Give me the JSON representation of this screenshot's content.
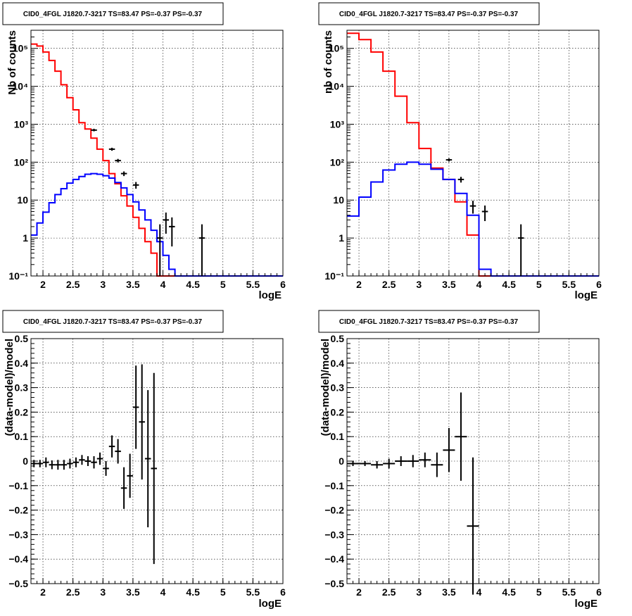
{
  "chart_data": [
    {
      "type": "line",
      "title": "CID0_4FGL J1820.7-3217 TS=83.47 PS=-0.37 PS=-0.37",
      "xlabel": "logE",
      "ylabel": "Nb of counts",
      "xlim": [
        1.8,
        6.0
      ],
      "ylim": [
        0.1,
        300000
      ],
      "yscale": "log",
      "grid": true,
      "xticks": [
        "2",
        "2.5",
        "3",
        "3.5",
        "4",
        "4.5",
        "5",
        "5.5",
        "6"
      ],
      "yticks": [
        "10⁻¹",
        "1",
        "10",
        "10²",
        "10³",
        "10⁴",
        "10⁵"
      ],
      "bin_edges": [
        1.8,
        1.9,
        2.0,
        2.1,
        2.2,
        2.3,
        2.4,
        2.5,
        2.6,
        2.7,
        2.8,
        2.9,
        3.0,
        3.1,
        3.2,
        3.3,
        3.4,
        3.5,
        3.6,
        3.7,
        3.8,
        3.9,
        4.0,
        4.1,
        4.2,
        4.3,
        4.4,
        4.5,
        4.6,
        4.7,
        4.8,
        4.9,
        5.0,
        5.1,
        5.2,
        5.3,
        5.4,
        5.5,
        5.6,
        5.7,
        5.8,
        5.9,
        6.0
      ],
      "series": [
        {
          "color": "#ff0000",
          "style": "step",
          "values": [
            130000,
            115000,
            80000,
            48000,
            25000,
            11000,
            5000,
            2400,
            1100,
            750,
            430,
            220,
            110,
            50,
            27,
            13,
            7,
            3.5,
            1.8,
            0.8,
            0.4,
            0.1,
            0.1,
            0.1,
            0.1,
            0.1,
            0.1,
            0.1,
            0.1,
            0.1,
            0.1,
            0.1,
            0.1,
            0.1,
            0.1,
            0.1,
            0.1,
            0.1,
            0.1,
            0.1,
            0.1,
            0.1
          ]
        },
        {
          "color": "#0000ff",
          "style": "step",
          "values": [
            1.2,
            2.5,
            4.8,
            8.5,
            14,
            20,
            28,
            35,
            42,
            48,
            50,
            48,
            44,
            38,
            29,
            21,
            14,
            9,
            5.5,
            3,
            1.6,
            0.8,
            0.35,
            0.15,
            0.1,
            0.1,
            0.1,
            0.1,
            0.1,
            0.1,
            0.1,
            0.1,
            0.1,
            0.1,
            0.1,
            0.1,
            0.1,
            0.1,
            0.1,
            0.1,
            0.1,
            0.1
          ]
        },
        {
          "color": "#000000",
          "style": "errorbar",
          "points": [
            {
              "x": 2.85,
              "y": 700,
              "lo": 650,
              "hi": 760
            },
            {
              "x": 3.15,
              "y": 220,
              "lo": 200,
              "hi": 240
            },
            {
              "x": 3.25,
              "y": 110,
              "lo": 98,
              "hi": 122
            },
            {
              "x": 3.35,
              "y": 50,
              "lo": 43,
              "hi": 57
            },
            {
              "x": 3.55,
              "y": 25,
              "lo": 20,
              "hi": 30
            },
            {
              "x": 3.95,
              "y": 1,
              "lo": 0.1,
              "hi": 2.3
            },
            {
              "x": 4.05,
              "y": 3,
              "lo": 1.3,
              "hi": 4.7
            },
            {
              "x": 4.15,
              "y": 2,
              "lo": 0.6,
              "hi": 3.5
            },
            {
              "x": 4.65,
              "y": 1,
              "lo": 0.1,
              "hi": 2.3
            }
          ]
        }
      ]
    },
    {
      "type": "line",
      "title": "CID0_4FGL J1820.7-3217 TS=83.47 PS=-0.37 PS=-0.37",
      "xlabel": "logE",
      "ylabel": "nb of counts",
      "xlim": [
        1.8,
        6.0
      ],
      "ylim": [
        0.1,
        300000
      ],
      "yscale": "log",
      "grid": true,
      "xticks": [
        "2",
        "2.5",
        "3",
        "3.5",
        "4",
        "4.5",
        "5",
        "5.5",
        "6"
      ],
      "yticks": [
        "10⁻¹",
        "1",
        "10",
        "10²",
        "10³",
        "10⁴",
        "10⁵"
      ],
      "bin_edges": [
        1.8,
        2.0,
        2.2,
        2.4,
        2.6,
        2.8,
        3.0,
        3.2,
        3.4,
        3.6,
        3.8,
        4.0,
        4.2,
        4.4,
        4.6,
        4.8,
        5.0,
        5.2,
        5.4,
        5.6,
        5.8,
        6.0
      ],
      "series": [
        {
          "color": "#ff0000",
          "style": "step",
          "values": [
            250000,
            170000,
            80000,
            25000,
            5500,
            1100,
            230,
            70,
            35,
            9,
            1.2,
            0.1,
            0.1,
            0.1,
            0.1,
            0.1,
            0.1,
            0.1,
            0.1,
            0.1,
            0.1
          ]
        },
        {
          "color": "#0000ff",
          "style": "step",
          "values": [
            3.8,
            12,
            30,
            62,
            88,
            100,
            88,
            65,
            35,
            15,
            4,
            0.15,
            0.1,
            0.1,
            0.1,
            0.1,
            0.1,
            0.1,
            0.1,
            0.1,
            0.1
          ]
        },
        {
          "color": "#000000",
          "style": "errorbar",
          "points": [
            {
              "x": 3.5,
              "y": 115,
              "lo": 104,
              "hi": 126
            },
            {
              "x": 3.7,
              "y": 35,
              "lo": 29,
              "hi": 41
            },
            {
              "x": 3.9,
              "y": 7,
              "lo": 4.4,
              "hi": 9.6
            },
            {
              "x": 4.1,
              "y": 5,
              "lo": 2.8,
              "hi": 7.2
            },
            {
              "x": 4.7,
              "y": 1,
              "lo": 0.1,
              "hi": 2.3
            }
          ]
        }
      ]
    },
    {
      "type": "scatter",
      "title": "CID0_4FGL J1820.7-3217 TS=83.47 PS=-0.37 PS=-0.37",
      "xlabel": "logE",
      "ylabel": "(data-model)/model",
      "xlim": [
        1.8,
        6.0
      ],
      "ylim": [
        -0.5,
        0.5
      ],
      "grid": true,
      "xticks": [
        "2",
        "2.5",
        "3",
        "3.5",
        "4",
        "4.5",
        "5",
        "5.5",
        "6"
      ],
      "yticks": [
        "−0.5",
        "−0.4",
        "−0.3",
        "−0.2",
        "−0.1",
        "0",
        "0.1",
        "0.2",
        "0.3",
        "0.4",
        "0.5"
      ],
      "series": [
        {
          "color": "#000000",
          "style": "errorbar",
          "xerr": 0.05,
          "points": [
            {
              "x": 1.85,
              "y": -0.01,
              "err": 0.015
            },
            {
              "x": 1.95,
              "y": -0.01,
              "err": 0.015
            },
            {
              "x": 2.05,
              "y": -0.005,
              "err": 0.02
            },
            {
              "x": 2.15,
              "y": -0.015,
              "err": 0.018
            },
            {
              "x": 2.25,
              "y": -0.015,
              "err": 0.02
            },
            {
              "x": 2.35,
              "y": -0.015,
              "err": 0.02
            },
            {
              "x": 2.45,
              "y": -0.01,
              "err": 0.02
            },
            {
              "x": 2.55,
              "y": -0.005,
              "err": 0.02
            },
            {
              "x": 2.65,
              "y": 0.005,
              "err": 0.02
            },
            {
              "x": 2.75,
              "y": 0.0,
              "err": 0.02
            },
            {
              "x": 2.85,
              "y": -0.005,
              "err": 0.025
            },
            {
              "x": 2.95,
              "y": 0.01,
              "err": 0.025
            },
            {
              "x": 3.05,
              "y": -0.03,
              "err": 0.03
            },
            {
              "x": 3.15,
              "y": 0.06,
              "err": 0.045
            },
            {
              "x": 3.25,
              "y": 0.04,
              "err": 0.05
            },
            {
              "x": 3.35,
              "y": -0.11,
              "err": 0.085
            },
            {
              "x": 3.45,
              "y": -0.06,
              "err": 0.09
            },
            {
              "x": 3.55,
              "y": 0.22,
              "err": 0.17
            },
            {
              "x": 3.65,
              "y": 0.16,
              "err": 0.235
            },
            {
              "x": 3.75,
              "y": 0.01,
              "err": 0.28
            },
            {
              "x": 3.85,
              "y": -0.03,
              "err": 0.39
            }
          ]
        }
      ]
    },
    {
      "type": "scatter",
      "title": "CID0_4FGL J1820.7-3217 TS=83.47 PS=-0.37 PS=-0.37",
      "xlabel": "logE",
      "ylabel": "(data-model)/model",
      "xlim": [
        1.8,
        6.0
      ],
      "ylim": [
        -0.5,
        0.5
      ],
      "grid": true,
      "xticks": [
        "2",
        "2.5",
        "3",
        "3.5",
        "4",
        "4.5",
        "5",
        "5.5",
        "6"
      ],
      "yticks": [
        "−0.5",
        "−0.4",
        "−0.3",
        "−0.2",
        "−0.1",
        "0",
        "0.1",
        "0.2",
        "0.3",
        "0.4",
        "0.5"
      ],
      "series": [
        {
          "color": "#000000",
          "style": "errorbar",
          "xerr": 0.1,
          "points": [
            {
              "x": 1.9,
              "y": -0.01,
              "err": 0.01
            },
            {
              "x": 2.1,
              "y": -0.01,
              "err": 0.01
            },
            {
              "x": 2.3,
              "y": -0.015,
              "err": 0.015
            },
            {
              "x": 2.5,
              "y": -0.01,
              "err": 0.02
            },
            {
              "x": 2.7,
              "y": 0.0,
              "err": 0.02
            },
            {
              "x": 2.9,
              "y": 0.0,
              "err": 0.025
            },
            {
              "x": 3.1,
              "y": 0.005,
              "err": 0.03
            },
            {
              "x": 3.3,
              "y": -0.015,
              "err": 0.05
            },
            {
              "x": 3.5,
              "y": 0.045,
              "err": 0.09
            },
            {
              "x": 3.7,
              "y": 0.1,
              "err": 0.18
            },
            {
              "x": 3.9,
              "y": -0.265,
              "err": 0.28
            }
          ]
        }
      ]
    }
  ]
}
